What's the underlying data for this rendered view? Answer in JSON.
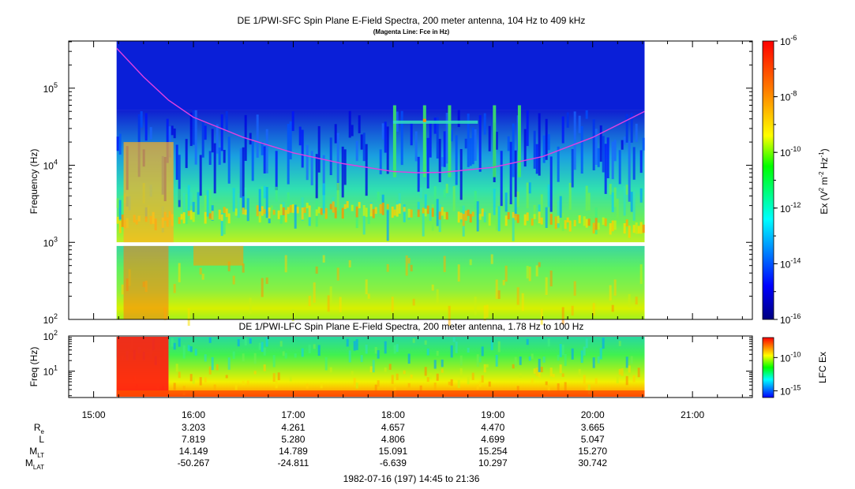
{
  "chart_data": [
    {
      "type": "heatmap",
      "title": "DE 1/PWI-SFC  Spin Plane E-Field Spectra, 200 meter antenna, 104 Hz to 409 kHz",
      "subtitle": "(Magenta Line: Fce in Hz)",
      "ylabel": "Frequency (Hz)",
      "yscale": "log",
      "ylim": [
        100,
        409000
      ],
      "y_ticks": [
        {
          "value": 100,
          "base": "10",
          "exp": "2"
        },
        {
          "value": 1000,
          "base": "10",
          "exp": "3"
        },
        {
          "value": 10000,
          "base": "10",
          "exp": "4"
        },
        {
          "value": 100000,
          "base": "10",
          "exp": "5"
        }
      ],
      "data_start_hour": 15.23,
      "data_end_hour": 20.52,
      "fce_line": {
        "color": "#e040e0",
        "x": [
          15.23,
          15.5,
          15.75,
          16.0,
          16.5,
          17.0,
          17.5,
          18.0,
          18.25,
          18.5,
          19.0,
          19.5,
          20.0,
          20.52
        ],
        "y": [
          330000,
          140000,
          70000,
          42000,
          23000,
          14500,
          10500,
          8300,
          8000,
          8100,
          9400,
          13000,
          23000,
          50000
        ]
      },
      "colorbar": {
        "label_base": "Ex (V",
        "label_sup1": "2",
        "label_mid": " m",
        "label_sup2": "-2",
        "label_mid2": " Hz",
        "label_sup3": "-1",
        "label_end": ")",
        "scale": "log",
        "range": [
          1e-16,
          1e-06
        ],
        "ticks": [
          {
            "value": 1e-06,
            "base": "10",
            "exp": "-6"
          },
          {
            "value": 1e-08,
            "base": "10",
            "exp": "-8"
          },
          {
            "value": 1e-10,
            "base": "10",
            "exp": "-10"
          },
          {
            "value": 1e-12,
            "base": "10",
            "exp": "-12"
          },
          {
            "value": 1e-14,
            "base": "10",
            "exp": "-14"
          },
          {
            "value": 1e-16,
            "base": "10",
            "exp": "-16"
          }
        ]
      }
    },
    {
      "type": "heatmap",
      "title": "DE 1/PWI-LFC  Spin Plane E-Field Spectra, 200 meter antenna, 1.78 Hz to 100 Hz",
      "ylabel": "Freq (Hz)",
      "yscale": "log",
      "ylim": [
        1.78,
        100
      ],
      "y_ticks": [
        {
          "value": 10,
          "base": "10",
          "exp": "1"
        },
        {
          "value": 100,
          "base": "10",
          "exp": "2"
        }
      ],
      "colorbar": {
        "label": "LFC Ex",
        "scale": "log",
        "range": [
          1e-16,
          1e-07
        ],
        "ticks": [
          {
            "value": 1e-10,
            "base": "10",
            "exp": "-10"
          },
          {
            "value": 1e-15,
            "base": "10",
            "exp": "-15"
          }
        ]
      }
    }
  ],
  "time_axis": {
    "range_hours": [
      14.75,
      21.6
    ],
    "ticks": [
      {
        "hour": 15,
        "label": "15:00"
      },
      {
        "hour": 16,
        "label": "16:00"
      },
      {
        "hour": 17,
        "label": "17:00"
      },
      {
        "hour": 18,
        "label": "18:00"
      },
      {
        "hour": 19,
        "label": "19:00"
      },
      {
        "hour": 20,
        "label": "20:00"
      },
      {
        "hour": 21,
        "label": "21:00"
      }
    ],
    "ephemeris": [
      {
        "label": "R",
        "sub": "e",
        "values": [
          "3.203",
          "4.261",
          "4.657",
          "4.470",
          "3.665"
        ]
      },
      {
        "label": "L",
        "sub": "",
        "values": [
          "7.819",
          "5.280",
          "4.806",
          "4.699",
          "5.047"
        ]
      },
      {
        "label": "M",
        "sub": "LT",
        "values": [
          "14.149",
          "14.789",
          "15.091",
          "15.254",
          "15.270"
        ]
      },
      {
        "label": "M",
        "sub": "LAT",
        "values": [
          "-50.267",
          "-24.811",
          "-6.639",
          "10.297",
          "30.742"
        ]
      }
    ],
    "ephemeris_hours": [
      16,
      17,
      18,
      19,
      20
    ],
    "footer": "1982-07-16 (197) 14:45 to 21:36"
  }
}
